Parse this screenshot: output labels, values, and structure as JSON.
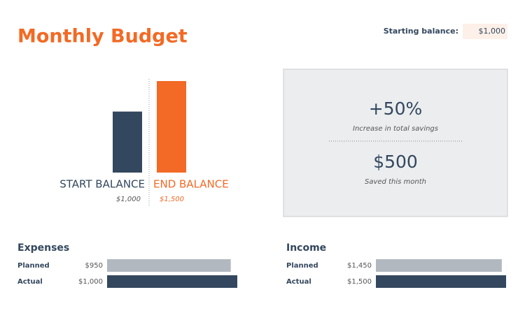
{
  "header": {
    "title": "Monthly Budget",
    "starting_balance_label": "Starting balance:",
    "starting_balance": "$1,000"
  },
  "balance_chart": {
    "type": "bar",
    "categories": [
      "START BALANCE",
      "END BALANCE"
    ],
    "values": [
      1000,
      1500
    ],
    "value_labels": [
      "$1,000",
      "$1,500"
    ],
    "colors": [
      "#33475e",
      "#f26a25"
    ]
  },
  "summary": {
    "increase": "+50%",
    "increase_label": "Increase in total savings",
    "saved": "$500",
    "saved_label": "Saved this month"
  },
  "expenses": {
    "title": "Expenses",
    "type": "hbar",
    "categories": [
      "Planned",
      "Actual"
    ],
    "values": [
      950,
      1000
    ],
    "value_labels": [
      "$950",
      "$1,000"
    ],
    "colors": [
      "#b1b8c0",
      "#33475e"
    ]
  },
  "income": {
    "title": "Income",
    "type": "hbar",
    "categories": [
      "Planned",
      "Actual"
    ],
    "values": [
      1450,
      1500
    ],
    "value_labels": [
      "$1,450",
      "$1,500"
    ],
    "colors": [
      "#b1b8c0",
      "#33475e"
    ]
  }
}
